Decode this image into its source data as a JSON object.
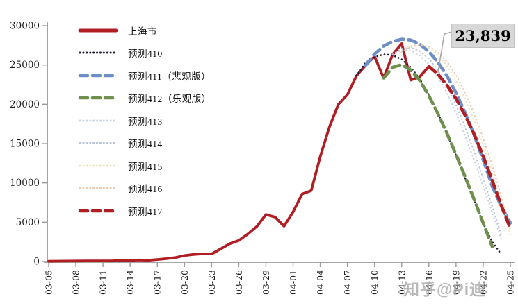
{
  "watermark": "知乎@Pi迪",
  "chart_data": {
    "type": "line",
    "title": "",
    "xlabel": "",
    "ylabel": "",
    "ylim": [
      0,
      30000
    ],
    "ytick_step": 5000,
    "yticks": [
      "0",
      "5000",
      "10000",
      "15000",
      "20000",
      "25000",
      "30000"
    ],
    "xticks": [
      "03-05",
      "03-08",
      "03-11",
      "03-14",
      "03-17",
      "03-20",
      "03-23",
      "03-26",
      "03-29",
      "04-01",
      "04-04",
      "04-07",
      "04-10",
      "04-13",
      "04-16",
      "04-19",
      "04-22",
      "04-25"
    ],
    "tick_step_days": 3,
    "grid": false,
    "legend_position": "upper-left",
    "annotation": {
      "text": "23,839",
      "day": 43,
      "value": 23839
    },
    "series": [
      {
        "name": "上海市",
        "color": "#B01E24",
        "style": "solid",
        "width": 3.8,
        "start": 0,
        "values": [
          28,
          45,
          55,
          65,
          75,
          78,
          83,
          70,
          169,
          140,
          197,
          158,
          260,
          366,
          502,
          759,
          896,
          981,
          983,
          1609,
          2269,
          2676,
          3500,
          4477,
          5982,
          5656,
          4502,
          6311,
          8581,
          9006,
          13354,
          17077,
          19982,
          21222,
          23624,
          24943,
          26087,
          23342,
          26330,
          27719,
          23072,
          23513,
          24820
        ]
      },
      {
        "name": "预测410",
        "color": "#1B1B33",
        "style": "dot",
        "width": 2.6,
        "start": 34,
        "values": [
          23624,
          25300,
          26000,
          26350,
          26250,
          25700,
          24700,
          23200,
          21200,
          18900,
          16300,
          13500,
          10600,
          7700,
          4900,
          2500,
          900
        ]
      },
      {
        "name": "预测411（悲观版）",
        "color": "#6D8FC6",
        "style": "dash",
        "width": 4.6,
        "start": 35,
        "values": [
          24943,
          26400,
          27400,
          28000,
          28270,
          28170,
          27650,
          26700,
          25350,
          23600,
          21450,
          18950,
          16100,
          12950,
          9550,
          7000,
          4900
        ]
      },
      {
        "name": "预测412（乐观版）",
        "color": "#6F8F4F",
        "style": "dash",
        "width": 4.6,
        "start": 37,
        "values": [
          23342,
          24700,
          25050,
          24350,
          23000,
          21100,
          18800,
          16300,
          13600,
          10800,
          7900,
          4900,
          1900
        ]
      },
      {
        "name": "预测413",
        "color": "#CBD3DE",
        "style": "dot",
        "width": 2.4,
        "start": 38,
        "values": [
          26330,
          26900,
          26850,
          26200,
          25100,
          23500,
          21400,
          18900,
          16000,
          12900,
          9600,
          6200,
          2800
        ]
      },
      {
        "name": "预测414",
        "color": "#B6C3DB",
        "style": "dot",
        "width": 2.4,
        "start": 38,
        "values": [
          26330,
          27050,
          27200,
          26750,
          25800,
          24300,
          22300,
          19900,
          17100,
          14000,
          10600,
          7000,
          3300
        ]
      },
      {
        "name": "预测415",
        "color": "#EFE5C4",
        "style": "dot",
        "width": 2.4,
        "start": 39,
        "values": [
          26800,
          27450,
          27600,
          27200,
          26300,
          24900,
          23000,
          20700,
          17900,
          14800,
          11300,
          7500,
          3300
        ]
      },
      {
        "name": "预测416",
        "color": "#E8CBB0",
        "style": "dot",
        "width": 2.4,
        "start": 39,
        "values": [
          26600,
          27300,
          27550,
          27350,
          26600,
          25400,
          23700,
          21500,
          18800,
          15700,
          12200,
          8300,
          4000
        ]
      },
      {
        "name": "预测417",
        "color": "#B01E24",
        "style": "dash",
        "width": 4.6,
        "start": 42,
        "values": [
          24820,
          23839,
          22400,
          20700,
          18600,
          16200,
          13400,
          10300,
          7100,
          4200
        ]
      }
    ]
  }
}
